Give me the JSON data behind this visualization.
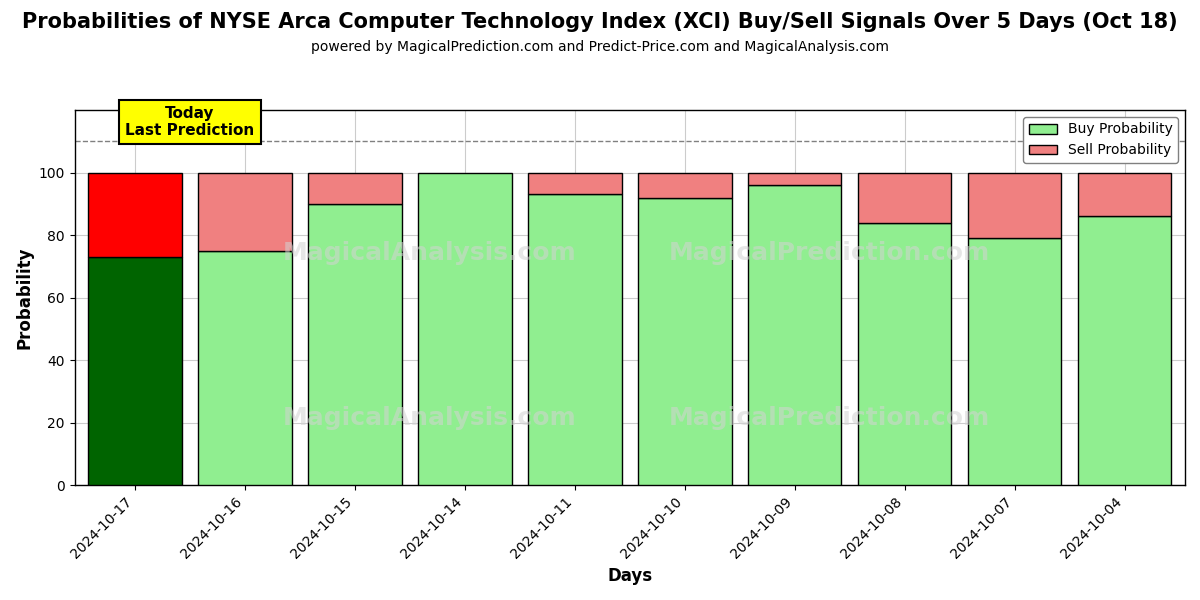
{
  "title": "Probabilities of NYSE Arca Computer Technology Index (XCI) Buy/Sell Signals Over 5 Days (Oct 18)",
  "subtitle": "powered by MagicalPrediction.com and Predict-Price.com and MagicalAnalysis.com",
  "xlabel": "Days",
  "ylabel": "Probability",
  "categories": [
    "2024-10-17",
    "2024-10-16",
    "2024-10-15",
    "2024-10-14",
    "2024-10-11",
    "2024-10-10",
    "2024-10-09",
    "2024-10-08",
    "2024-10-07",
    "2024-10-04"
  ],
  "buy_values": [
    73,
    75,
    90,
    100,
    93,
    92,
    96,
    84,
    79,
    86
  ],
  "sell_values": [
    27,
    25,
    10,
    0,
    7,
    8,
    4,
    16,
    21,
    14
  ],
  "today_buy_color": "#006400",
  "today_sell_color": "#ff0000",
  "buy_color": "#90ee90",
  "sell_color": "#f08080",
  "bar_edge_color": "#000000",
  "background_color": "#ffffff",
  "grid_color": "#cccccc",
  "ylim": [
    0,
    120
  ],
  "yticks": [
    0,
    20,
    40,
    60,
    80,
    100
  ],
  "dashed_line_y": 110,
  "today_label": "Today\nLast Prediction",
  "today_label_bg": "#ffff00",
  "watermark1": "MagicalAnalysis.com",
  "watermark2": "MagicalPrediction.com",
  "legend_buy": "Buy Probability",
  "legend_sell": "Sell Probability",
  "title_fontsize": 15,
  "subtitle_fontsize": 10,
  "axis_label_fontsize": 12
}
